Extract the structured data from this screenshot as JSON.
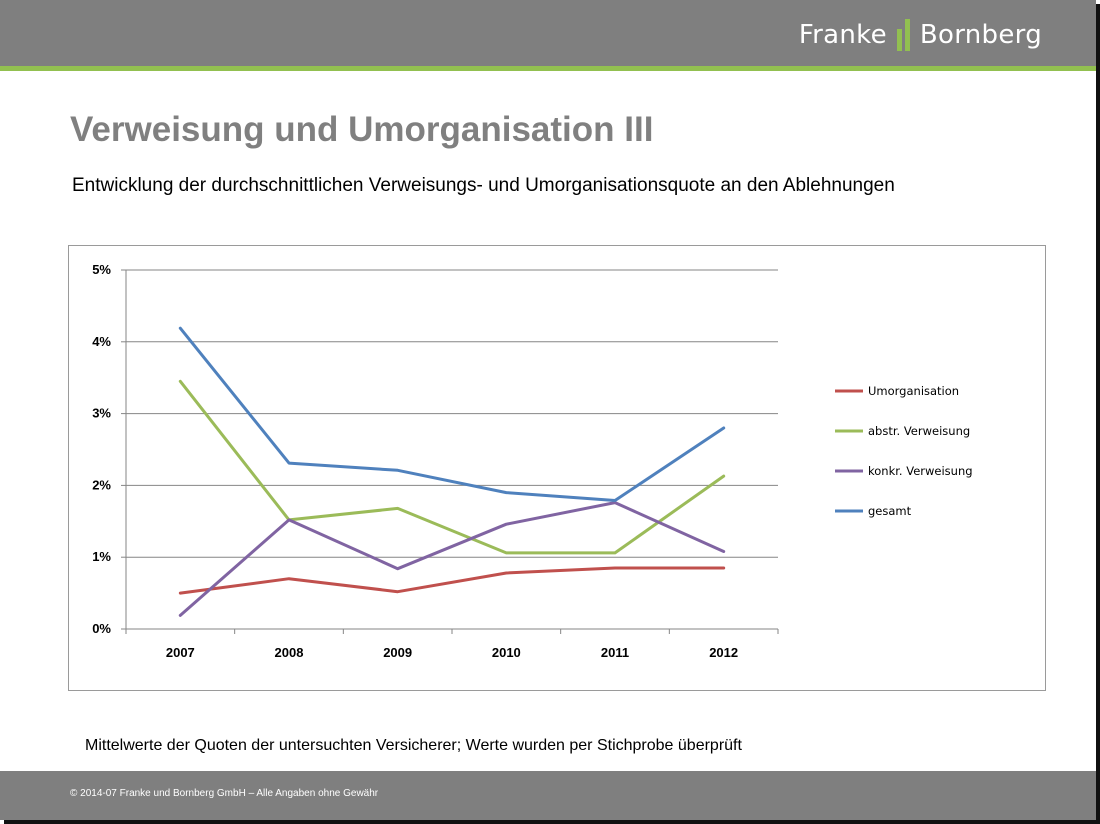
{
  "header": {
    "logo_left": "Franke",
    "logo_right": "Bornberg"
  },
  "slide": {
    "title": "Verweisung und Umorganisation III",
    "subtitle": "Entwicklung der durchschnittlichen Verweisungs- und Umorganisationsquote an den Ablehnungen",
    "footnote": "Mittelwerte der Quoten der untersuchten Versicherer; Werte wurden per Stichprobe überprüft"
  },
  "footer": {
    "text": "© 2014-07 Franke und Bornberg GmbH – Alle Angaben ohne Gewähr"
  },
  "colors": {
    "header_bg": "#7f7f7f",
    "accent_green": "#92c050",
    "title_gray": "#808080"
  },
  "chart_data": {
    "type": "line",
    "x": [
      "2007",
      "2008",
      "2009",
      "2010",
      "2011",
      "2012"
    ],
    "y_ticks": [
      "0%",
      "1%",
      "2%",
      "3%",
      "4%",
      "5%"
    ],
    "ylim": [
      0,
      5
    ],
    "y_unit": "%",
    "grid": true,
    "legend_position": "right",
    "series": [
      {
        "name": "Umorganisation",
        "color": "#c0504d",
        "values": [
          0.5,
          0.7,
          0.52,
          0.78,
          0.85,
          0.85
        ]
      },
      {
        "name": "abstr. Verweisung",
        "color": "#9bbb59",
        "values": [
          3.45,
          1.52,
          1.68,
          1.06,
          1.06,
          2.13
        ]
      },
      {
        "name": "konkr. Verweisung",
        "color": "#8064a2",
        "values": [
          0.19,
          1.52,
          0.84,
          1.46,
          1.76,
          1.08
        ]
      },
      {
        "name": "gesamt",
        "color": "#4f81bd",
        "values": [
          4.19,
          2.31,
          2.21,
          1.9,
          1.79,
          2.8
        ]
      }
    ]
  }
}
